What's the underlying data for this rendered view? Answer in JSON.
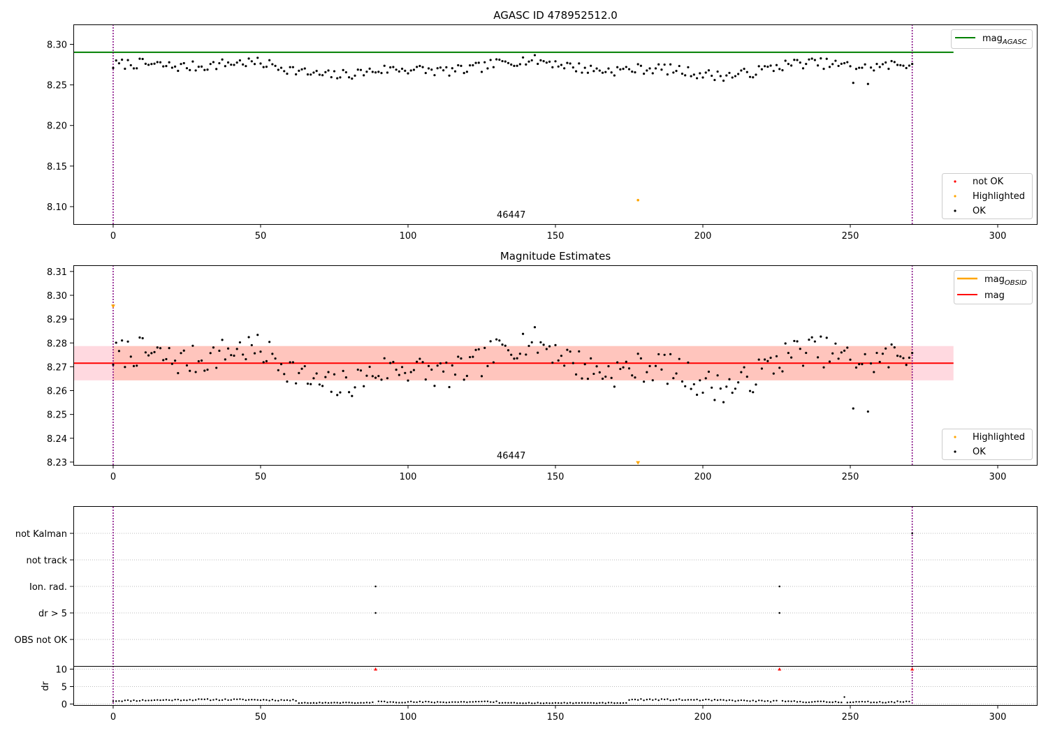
{
  "chart_data": [
    {
      "type": "scatter",
      "title": "AGASC ID 478952512.0",
      "xlim": [
        -13.5,
        313.5
      ],
      "ylim": [
        8.0785,
        8.3245
      ],
      "xticks": [
        0,
        50,
        100,
        150,
        200,
        250,
        300
      ],
      "yticks": [
        8.1,
        8.15,
        8.2,
        8.25,
        8.3
      ],
      "ytick_labels": [
        "8.10",
        "8.15",
        "8.20",
        "8.25",
        "8.30"
      ],
      "annotation": {
        "text": "46447",
        "x": 135,
        "y": 8.0785
      },
      "vlines": [
        0,
        271
      ],
      "hline": {
        "y": 8.2902,
        "x_start": -13.5,
        "x_end": 285,
        "color": "#008000"
      },
      "highlighted": [
        {
          "x": 178,
          "y": 8.108
        }
      ],
      "legend_top": [
        {
          "label": "mag",
          "subscript": "AGASC",
          "color": "#008000"
        }
      ],
      "legend_bottom": [
        {
          "label": "not OK",
          "color": "#ff0000"
        },
        {
          "label": "Highlighted",
          "color": "#ffa500"
        },
        {
          "label": "OK",
          "color": "#000000"
        }
      ],
      "series": [
        {
          "name": "OK",
          "seed": 7,
          "mean": 8.2705,
          "spread": 0.0065,
          "extremes": [
            [
              251,
              8.2525
            ],
            [
              256,
              8.2512
            ]
          ]
        }
      ]
    },
    {
      "type": "scatter",
      "title": "Magnitude Estimates",
      "xlim": [
        -13.5,
        313.5
      ],
      "ylim": [
        8.2288,
        8.3126
      ],
      "xticks": [
        0,
        50,
        100,
        150,
        200,
        250,
        300
      ],
      "yticks": [
        8.23,
        8.24,
        8.25,
        8.26,
        8.27,
        8.28,
        8.29,
        8.3,
        8.31
      ],
      "ytick_labels": [
        "8.23",
        "8.24",
        "8.25",
        "8.26",
        "8.27",
        "8.28",
        "8.29",
        "8.30",
        "8.31"
      ],
      "annotation": {
        "text": "46447",
        "x": 135,
        "y": 8.2288
      },
      "vlines": [
        0,
        271
      ],
      "mean_line": {
        "y": 8.2715,
        "x_start": -13.5,
        "x_end": 285,
        "color": "#ff0000"
      },
      "band": {
        "y_low": 8.2643,
        "y_high": 8.2787
      },
      "highlighted": [
        {
          "x": 0,
          "y": 8.2955
        },
        {
          "x": 178,
          "y": 8.2298
        }
      ],
      "legend_top": [
        {
          "label": "mag",
          "subscript": "OBSID",
          "color": "#ffa500"
        },
        {
          "label": "mag",
          "subscript": "",
          "color": "#ff0000"
        }
      ],
      "legend_bottom": [
        {
          "label": "Highlighted",
          "color": "#ffa500"
        },
        {
          "label": "OK",
          "color": "#000000"
        }
      ]
    },
    {
      "type": "scatter",
      "xlim": [
        -13.5,
        313.5
      ],
      "xticks": [
        0,
        50,
        100,
        150,
        200,
        250,
        300
      ],
      "flag_labels": [
        "not Kalman",
        "not track",
        "Ion. rad.",
        "dr > 5",
        "OBS not OK"
      ],
      "flag_points": [
        {
          "flag": "not Kalman",
          "x": 271
        },
        {
          "flag": "Ion. rad.",
          "x": 89
        },
        {
          "flag": "Ion. rad.",
          "x": 226
        },
        {
          "flag": "dr > 5",
          "x": 89
        },
        {
          "flag": "dr > 5",
          "x": 226
        }
      ],
      "vlines": [
        0,
        271
      ],
      "ylabel": "dr",
      "ylim": [
        -0.3,
        10.7
      ],
      "yticks": [
        0,
        5,
        10
      ],
      "dr_outliers": [
        {
          "x": 89,
          "y": 10
        },
        {
          "x": 226,
          "y": 10
        },
        {
          "x": 271,
          "y": 10
        }
      ]
    }
  ]
}
